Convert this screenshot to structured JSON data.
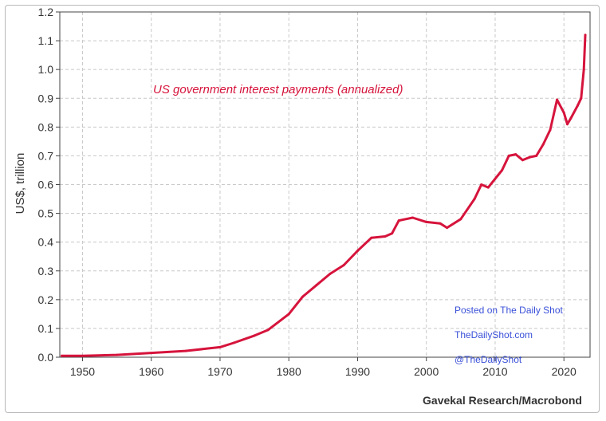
{
  "chart_data": {
    "type": "line",
    "title": "",
    "series": [
      {
        "name": "US government interest payments (annualized)",
        "color": "#d6143c",
        "x": [
          1947,
          1950,
          1955,
          1960,
          1965,
          1970,
          1972,
          1975,
          1977,
          1980,
          1982,
          1984,
          1986,
          1988,
          1990,
          1992,
          1994,
          1995,
          1996,
          1998,
          2000,
          2002,
          2003,
          2005,
          2007,
          2008,
          2009,
          2011,
          2012,
          2013,
          2014,
          2015,
          2016,
          2017,
          2018,
          2019,
          2020,
          2020.5,
          2021,
          2022,
          2022.5,
          2022.9,
          2023.1
        ],
        "values": [
          0.005,
          0.005,
          0.008,
          0.015,
          0.022,
          0.035,
          0.05,
          0.075,
          0.095,
          0.15,
          0.21,
          0.25,
          0.29,
          0.32,
          0.37,
          0.415,
          0.42,
          0.43,
          0.475,
          0.485,
          0.47,
          0.465,
          0.45,
          0.48,
          0.55,
          0.6,
          0.59,
          0.65,
          0.7,
          0.705,
          0.685,
          0.695,
          0.7,
          0.74,
          0.79,
          0.895,
          0.85,
          0.81,
          0.83,
          0.875,
          0.9,
          1.0,
          1.12
        ]
      }
    ],
    "xlim": [
      1946.7,
      2023.8
    ],
    "ylim": [
      0,
      1.2
    ],
    "xticks": [
      1950,
      1960,
      1970,
      1980,
      1990,
      2000,
      2010,
      2020
    ],
    "yticks": [
      "0.0",
      "0.1",
      "0.2",
      "0.3",
      "0.4",
      "0.5",
      "0.6",
      "0.7",
      "0.8",
      "0.9",
      "1.0",
      "1.1",
      "1.2"
    ],
    "xlabel": "",
    "ylabel": "US$, trillion",
    "grid": true,
    "series_label": "US government interest payments (annualized)",
    "watermark": [
      "Posted on The Daily Shot",
      "TheDailyShot.com",
      "@TheDailyShot"
    ],
    "source": "Gavekal Research/Macrobond"
  }
}
